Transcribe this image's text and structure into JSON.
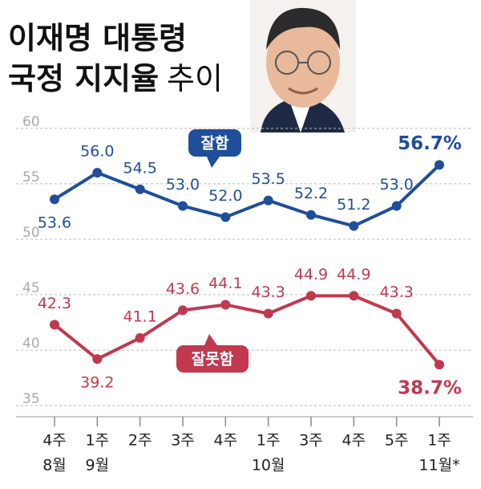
{
  "chart_data": {
    "type": "line",
    "title_line1": "이재명 대통령",
    "title_line2": "국정 지지율",
    "title_light": "추이",
    "categories": [
      "4주",
      "1주",
      "2주",
      "3주",
      "4주",
      "1주",
      "3주",
      "4주",
      "5주",
      "1주"
    ],
    "months": [
      "8월",
      "9월",
      null,
      null,
      null,
      "10월",
      null,
      null,
      null,
      "11월*"
    ],
    "ylim": [
      34,
      61
    ],
    "yticks": [
      35,
      40,
      45,
      50,
      55,
      60
    ],
    "grid": true,
    "series": [
      {
        "name": "잘함",
        "color": "#1f4e9a",
        "values": [
          53.6,
          56.0,
          54.5,
          53.0,
          52.0,
          53.5,
          52.2,
          51.2,
          53.0,
          56.7
        ],
        "value_labels": [
          "53.6",
          "56.0",
          "54.5",
          "53.0",
          "52.0",
          "53.5",
          "52.2",
          "51.2",
          "53.0",
          "56.7%"
        ]
      },
      {
        "name": "잘못함",
        "color": "#c0394f",
        "values": [
          42.3,
          39.2,
          41.1,
          43.6,
          44.1,
          43.3,
          44.9,
          44.9,
          43.3,
          38.7
        ],
        "value_labels": [
          "42.3",
          "39.2",
          "41.1",
          "43.6",
          "44.1",
          "43.3",
          "44.9",
          "44.9",
          "43.3",
          "38.7%"
        ]
      }
    ]
  }
}
